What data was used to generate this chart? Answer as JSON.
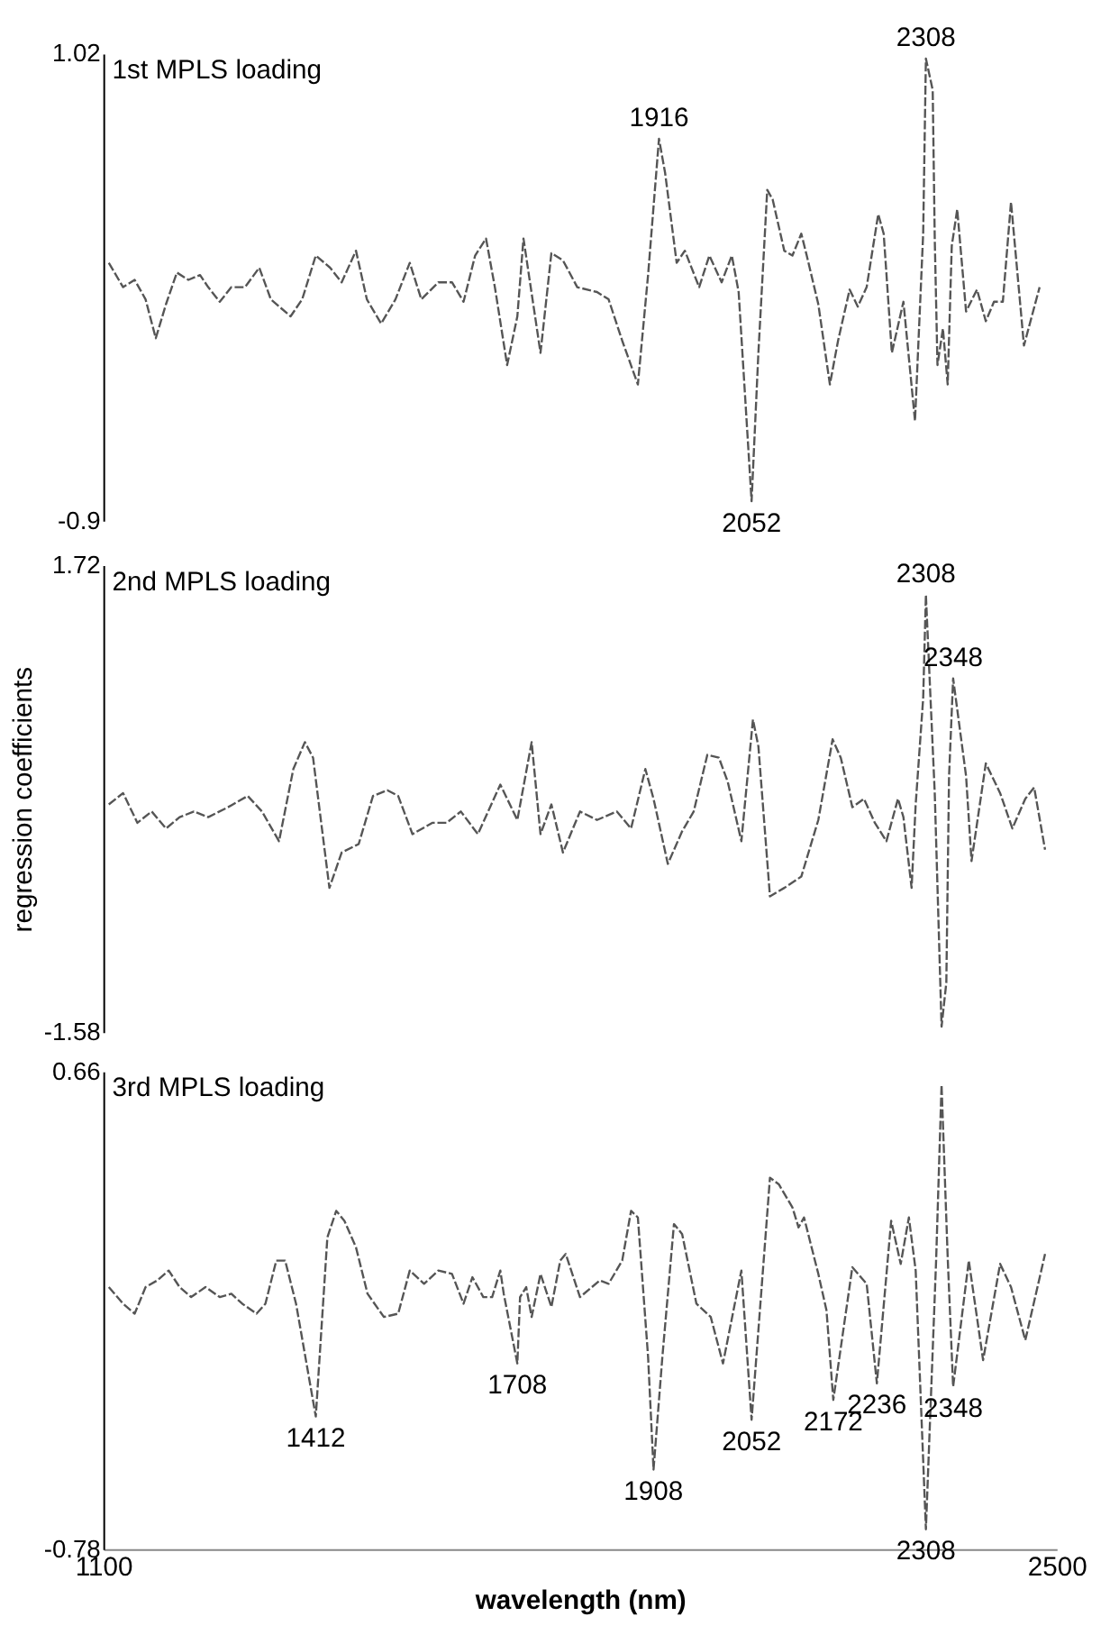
{
  "chart_data": [
    {
      "type": "line",
      "title": "1st MPLS loading",
      "line_style": "dashed",
      "tick_labels": "y",
      "xlim": [
        1100,
        2500
      ],
      "ylim": [
        -0.9,
        1.02
      ],
      "yticks": [
        -0.9,
        1.02
      ],
      "x": [
        1108,
        1129,
        1146,
        1162,
        1177,
        1192,
        1208,
        1225,
        1242,
        1254,
        1271,
        1288,
        1308,
        1329,
        1346,
        1375,
        1392,
        1412,
        1433,
        1450,
        1471,
        1487,
        1508,
        1529,
        1550,
        1567,
        1592,
        1612,
        1629,
        1646,
        1662,
        1675,
        1693,
        1708,
        1717,
        1742,
        1758,
        1775,
        1796,
        1825,
        1842,
        1862,
        1885,
        1900,
        1916,
        1925,
        1942,
        1954,
        1975,
        1990,
        2008,
        2023,
        2033,
        2052,
        2062,
        2075,
        2083,
        2100,
        2112,
        2125,
        2133,
        2150,
        2167,
        2179,
        2196,
        2208,
        2221,
        2238,
        2246,
        2258,
        2275,
        2292,
        2304,
        2308,
        2318,
        2321,
        2325,
        2333,
        2340,
        2346,
        2354,
        2367,
        2383,
        2396,
        2408,
        2421,
        2433,
        2452,
        2475
      ],
      "series": [
        {
          "color": "#555555",
          "values": [
            0.16,
            0.06,
            0.09,
            0.01,
            -0.15,
            -0.01,
            0.12,
            0.09,
            0.11,
            0.06,
            0.0,
            0.06,
            0.06,
            0.14,
            0.01,
            -0.06,
            0.01,
            0.19,
            0.14,
            0.08,
            0.21,
            0.01,
            -0.09,
            0.01,
            0.16,
            0.01,
            0.08,
            0.08,
            0.0,
            0.19,
            0.26,
            0.06,
            -0.26,
            -0.06,
            0.26,
            -0.21,
            0.2,
            0.17,
            0.06,
            0.04,
            0.01,
            -0.16,
            -0.34,
            0.11,
            0.67,
            0.53,
            0.16,
            0.21,
            0.06,
            0.19,
            0.08,
            0.19,
            0.04,
            -0.82,
            -0.21,
            0.46,
            0.42,
            0.21,
            0.19,
            0.28,
            0.19,
            -0.01,
            -0.34,
            -0.16,
            0.05,
            -0.02,
            0.06,
            0.36,
            0.28,
            -0.21,
            0.0,
            -0.49,
            0.28,
            1.0,
            0.87,
            0.26,
            -0.26,
            -0.11,
            -0.34,
            0.23,
            0.38,
            -0.04,
            0.05,
            -0.08,
            0.0,
            0.0,
            0.41,
            -0.18,
            0.06
          ]
        }
      ],
      "annotations": [
        {
          "text": "1916",
          "x": 1916,
          "y": 0.67
        },
        {
          "text": "2052",
          "x": 2052,
          "y": -0.82
        },
        {
          "text": "2308",
          "x": 2308,
          "y": 1.0
        }
      ]
    },
    {
      "type": "line",
      "title": "2nd MPLS loading",
      "ylabel": "regression coefficients",
      "line_style": "dashed",
      "tick_labels": "y",
      "xlim": [
        1100,
        2500
      ],
      "ylim": [
        -1.58,
        1.72
      ],
      "yticks": [
        -1.58,
        1.72
      ],
      "x": [
        1108,
        1129,
        1150,
        1171,
        1192,
        1212,
        1233,
        1254,
        1283,
        1312,
        1333,
        1358,
        1379,
        1396,
        1408,
        1421,
        1432,
        1450,
        1475,
        1496,
        1517,
        1533,
        1554,
        1583,
        1604,
        1625,
        1650,
        1683,
        1708,
        1729,
        1742,
        1758,
        1775,
        1800,
        1825,
        1854,
        1875,
        1896,
        1908,
        1929,
        1950,
        1967,
        1987,
        2004,
        2017,
        2037,
        2054,
        2062,
        2079,
        2100,
        2125,
        2150,
        2171,
        2183,
        2200,
        2217,
        2233,
        2250,
        2267,
        2275,
        2287,
        2293,
        2304,
        2308,
        2321,
        2331,
        2338,
        2342,
        2348,
        2367,
        2375,
        2396,
        2417,
        2435,
        2454,
        2467,
        2483
      ],
      "series": [
        {
          "color": "#555555",
          "values": [
            0.03,
            0.11,
            -0.1,
            -0.02,
            -0.14,
            -0.06,
            -0.02,
            -0.06,
            0.01,
            0.09,
            -0.02,
            -0.23,
            0.28,
            0.47,
            0.36,
            -0.14,
            -0.56,
            -0.31,
            -0.25,
            0.09,
            0.13,
            0.09,
            -0.18,
            -0.1,
            -0.1,
            -0.02,
            -0.18,
            0.17,
            -0.08,
            0.47,
            -0.18,
            0.03,
            -0.31,
            -0.02,
            -0.08,
            -0.02,
            -0.14,
            0.28,
            0.07,
            -0.39,
            -0.16,
            -0.02,
            0.38,
            0.36,
            0.19,
            -0.23,
            0.63,
            0.44,
            -0.62,
            -0.56,
            -0.48,
            -0.08,
            0.49,
            0.36,
            0.01,
            0.07,
            -0.1,
            -0.23,
            0.07,
            -0.06,
            -0.56,
            0.03,
            0.78,
            1.51,
            0.11,
            -1.54,
            -1.23,
            0.23,
            0.92,
            0.23,
            -0.37,
            0.32,
            0.11,
            -0.14,
            0.07,
            0.15,
            -0.29
          ]
        }
      ],
      "annotations": [
        {
          "text": "2308",
          "x": 2308,
          "y": 1.51
        },
        {
          "text": "2348",
          "x": 2348,
          "y": 0.92
        }
      ]
    },
    {
      "type": "line",
      "title": "3rd MPLS loading",
      "xlabel": "wavelength (nm)",
      "line_style": "dashed",
      "xlim": [
        1100,
        2500
      ],
      "xticks": [
        1100,
        2500
      ],
      "ylim": [
        -0.78,
        0.66
      ],
      "yticks": [
        -0.78,
        0.66
      ],
      "x": [
        1108,
        1129,
        1146,
        1162,
        1179,
        1196,
        1212,
        1229,
        1250,
        1271,
        1288,
        1304,
        1325,
        1338,
        1354,
        1367,
        1383,
        1412,
        1417,
        1429,
        1442,
        1454,
        1471,
        1488,
        1512,
        1533,
        1550,
        1571,
        1592,
        1612,
        1629,
        1642,
        1658,
        1671,
        1683,
        1688,
        1708,
        1712,
        1721,
        1729,
        1742,
        1758,
        1771,
        1779,
        1800,
        1829,
        1842,
        1862,
        1875,
        1885,
        1900,
        1908,
        1921,
        1938,
        1950,
        1971,
        1992,
        2010,
        2037,
        2052,
        2079,
        2092,
        2112,
        2121,
        2129,
        2150,
        2162,
        2172,
        2200,
        2221,
        2236,
        2257,
        2271,
        2283,
        2293,
        2308,
        2323,
        2331,
        2340,
        2348,
        2371,
        2392,
        2417,
        2433,
        2454,
        2483
      ],
      "series": [
        {
          "color": "#555555",
          "values": [
            0.01,
            -0.04,
            -0.07,
            0.01,
            0.03,
            0.06,
            0.01,
            -0.02,
            0.01,
            -0.02,
            -0.01,
            -0.04,
            -0.07,
            -0.04,
            0.09,
            0.09,
            -0.04,
            -0.38,
            -0.22,
            0.16,
            0.24,
            0.21,
            0.13,
            -0.01,
            -0.08,
            -0.07,
            0.06,
            0.02,
            0.06,
            0.05,
            -0.04,
            0.04,
            -0.02,
            -0.02,
            0.06,
            -0.01,
            -0.22,
            -0.02,
            0.01,
            -0.08,
            0.05,
            -0.05,
            0.09,
            0.11,
            -0.02,
            0.03,
            0.02,
            0.09,
            0.24,
            0.22,
            -0.2,
            -0.54,
            -0.2,
            0.2,
            0.17,
            -0.04,
            -0.08,
            -0.22,
            0.06,
            -0.39,
            0.34,
            0.32,
            0.25,
            0.19,
            0.22,
            0.05,
            -0.06,
            -0.33,
            0.07,
            0.02,
            -0.28,
            0.21,
            0.08,
            0.22,
            0.06,
            -0.72,
            0.09,
            0.62,
            0.1,
            -0.29,
            0.09,
            -0.21,
            0.08,
            0.01,
            -0.15,
            0.11
          ]
        }
      ],
      "annotations": [
        {
          "text": "1412",
          "x": 1412,
          "y": -0.38
        },
        {
          "text": "1708",
          "x": 1708,
          "y": -0.22
        },
        {
          "text": "1908",
          "x": 1908,
          "y": -0.54
        },
        {
          "text": "2052",
          "x": 2052,
          "y": -0.39
        },
        {
          "text": "2172",
          "x": 2172,
          "y": -0.33
        },
        {
          "text": "2236",
          "x": 2236,
          "y": -0.28
        },
        {
          "text": "2308",
          "x": 2308,
          "y": -0.72
        },
        {
          "text": "2348",
          "x": 2348,
          "y": -0.29
        }
      ]
    }
  ]
}
